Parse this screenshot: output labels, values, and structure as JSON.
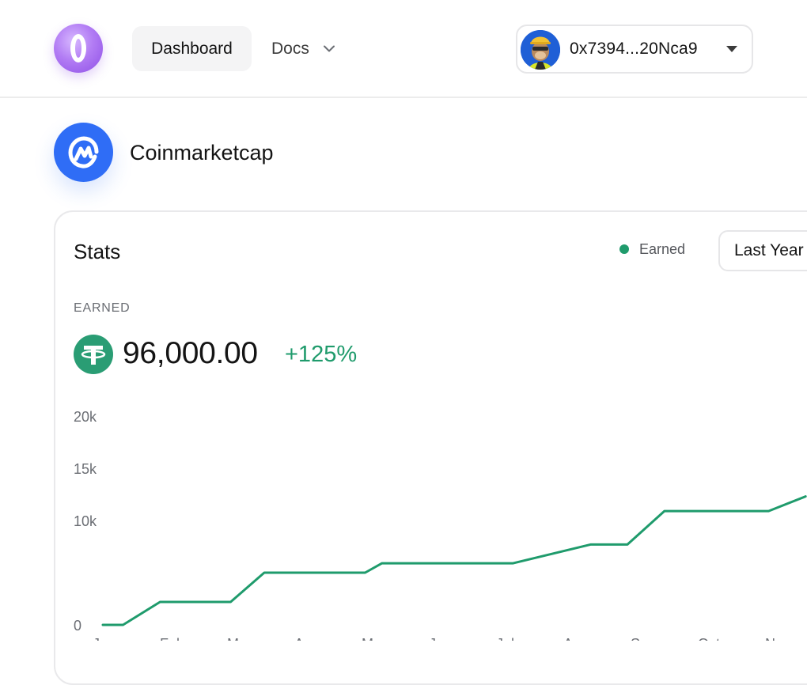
{
  "nav": {
    "dashboard_label": "Dashboard",
    "docs_label": "Docs",
    "docs_icon": "chevron-down-icon",
    "logo_icon": "brand-logo-icon"
  },
  "wallet": {
    "address": "0x7394...20Nca9",
    "avatar_icon": "ape-avatar-icon",
    "caret_icon": "caret-down-icon"
  },
  "project": {
    "name": "Coinmarketcap",
    "logo_icon": "coinmarketcap-logo-icon"
  },
  "stats": {
    "title": "Stats",
    "legend_label": "Earned",
    "period": "Last Year",
    "earned_label": "EARNED",
    "earned_value": "96,000.00",
    "earned_change": "+125%",
    "token_icon": "tether-icon"
  },
  "colors": {
    "accent": "#1f9b6c",
    "project_blue": "#2f6df6",
    "brand_purple": "#b27cf4"
  },
  "chart_data": {
    "type": "line",
    "title": "",
    "xlabel": "",
    "ylabel": "",
    "ylim": [
      0,
      20000
    ],
    "y_ticks": [
      "20k",
      "15k",
      "10k",
      "0"
    ],
    "y_tick_values": [
      20000,
      15000,
      10000,
      0
    ],
    "categories": [
      "Jan",
      "Feb",
      "Mar",
      "Apr",
      "May",
      "Jun",
      "Jul",
      "Aug",
      "Sep",
      "Oct",
      "Nov"
    ],
    "series": [
      {
        "name": "Earned",
        "x": [
          0.0,
          0.3,
          0.85,
          1.9,
          2.4,
          2.85,
          3.9,
          4.15,
          5.2,
          6.1,
          7.25,
          7.8,
          8.35,
          9.9,
          10.45
        ],
        "values": [
          0,
          0,
          2200,
          2200,
          5000,
          5000,
          5000,
          5900,
          5900,
          5900,
          7700,
          7700,
          10900,
          10900,
          12300
        ]
      }
    ]
  }
}
